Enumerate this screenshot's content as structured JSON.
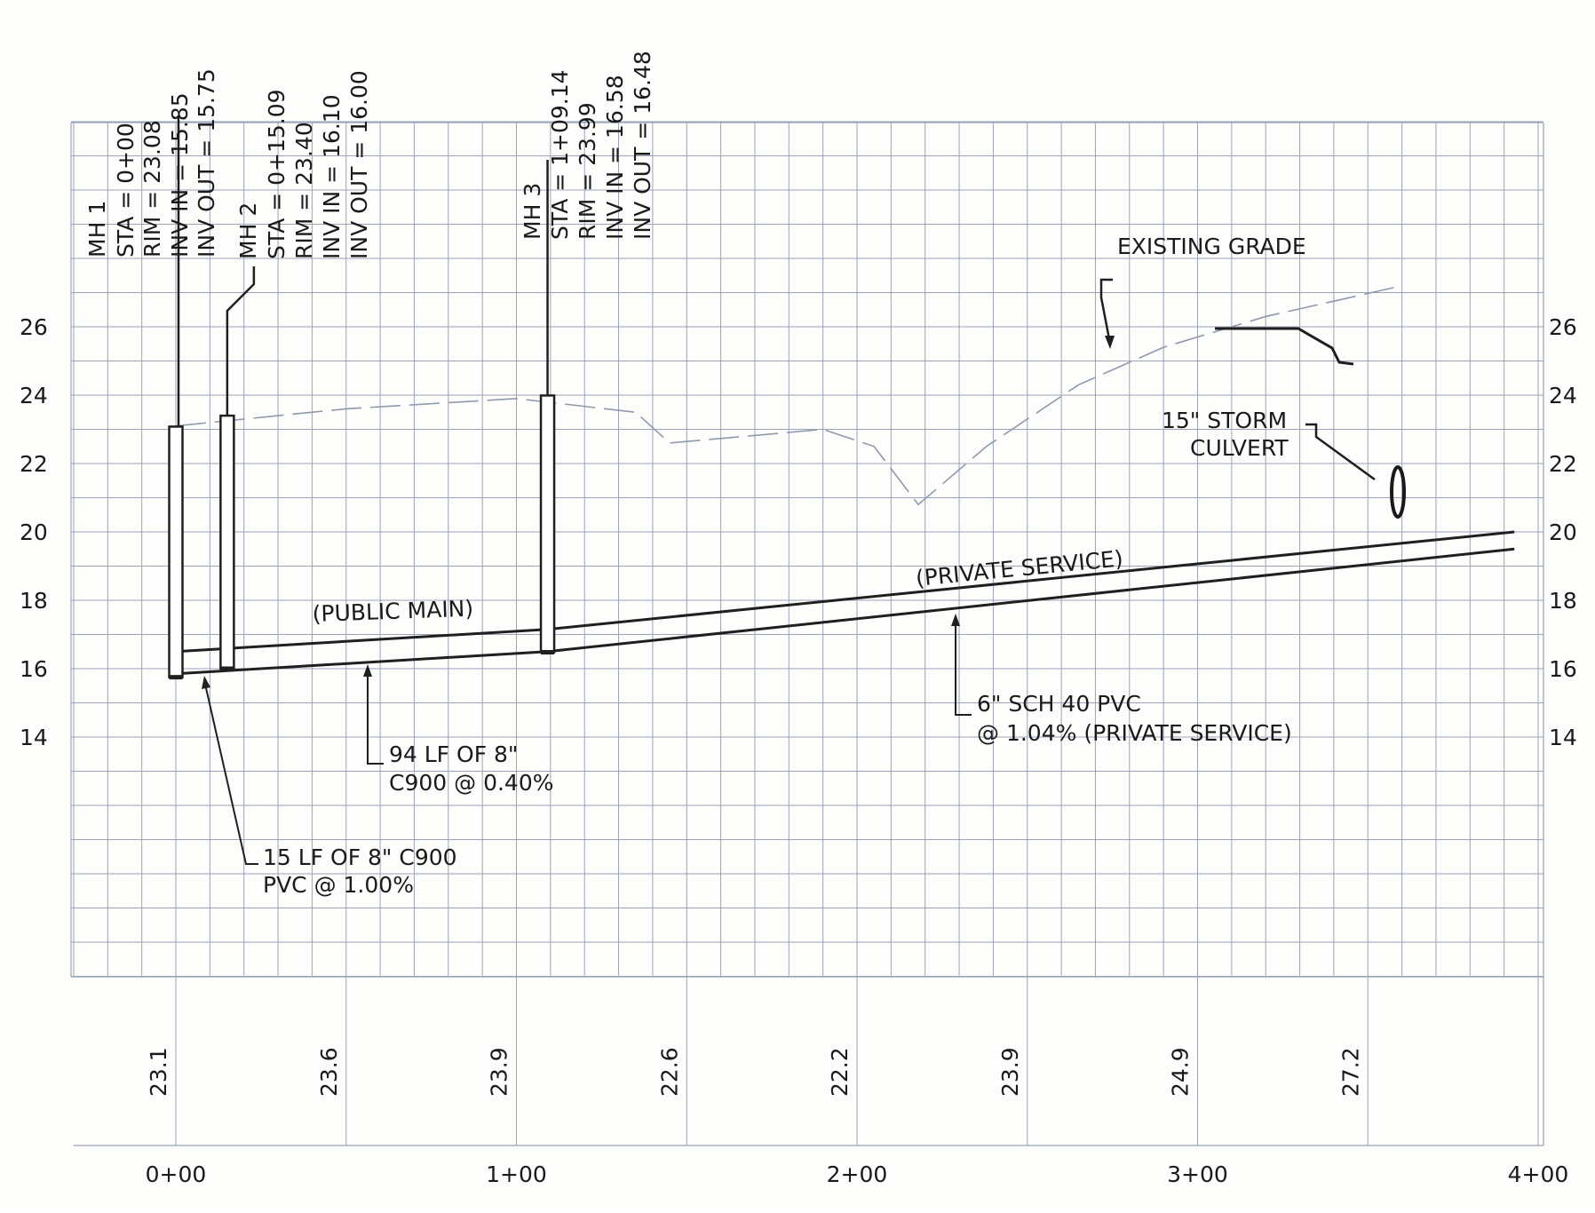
{
  "structures": [
    {
      "sta": 0.0,
      "rim": 23.08,
      "inv_low": 15.75,
      "lines": [
        "MH 1",
        "STA = 0+00",
        "RIM = 23.08",
        "INV IN = 15.85",
        "INV OUT = 15.75"
      ]
    },
    {
      "sta": 15.09,
      "rim": 23.4,
      "inv_low": 16.0,
      "lines": [
        "MH 2",
        "STA = 0+15.09",
        "RIM = 23.40",
        "INV IN = 16.10",
        "INV OUT = 16.00"
      ]
    },
    {
      "sta": 109.14,
      "rim": 23.99,
      "inv_low": 16.48,
      "lines": [
        "MH 3",
        "STA = 1+09.14",
        "RIM = 23.99",
        "INV IN = 16.58",
        "INV OUT = 16.48"
      ]
    }
  ],
  "elevation_labels": [
    "26",
    "24",
    "22",
    "20",
    "18",
    "16",
    "14"
  ],
  "elevation_values": [
    26,
    24,
    22,
    20,
    18,
    16,
    14
  ],
  "station_labels": [
    "0+00",
    "1+00",
    "2+00",
    "3+00",
    "4+00"
  ],
  "station_values": [
    0,
    100,
    200,
    300,
    400
  ],
  "grade_table": [
    {
      "sta": 0,
      "value": "23.1"
    },
    {
      "sta": 50,
      "value": "23.6"
    },
    {
      "sta": 100,
      "value": "23.9"
    },
    {
      "sta": 150,
      "value": "22.6"
    },
    {
      "sta": 200,
      "value": "22.2"
    },
    {
      "sta": 250,
      "value": "23.9"
    },
    {
      "sta": 300,
      "value": "24.9"
    },
    {
      "sta": 350,
      "value": "27.2"
    }
  ],
  "existing_grade_profile": [
    [
      0,
      23.1
    ],
    [
      50,
      23.6
    ],
    [
      100,
      23.9
    ],
    [
      135,
      23.5
    ],
    [
      145,
      22.6
    ],
    [
      190,
      23.0
    ],
    [
      205,
      22.5
    ],
    [
      218,
      20.8
    ],
    [
      238,
      22.5
    ],
    [
      265,
      24.3
    ],
    [
      290,
      25.4
    ],
    [
      320,
      26.3
    ],
    [
      360,
      27.2
    ]
  ],
  "pipe_crown": [
    [
      0,
      16.5
    ],
    [
      109.14,
      17.15
    ],
    [
      393,
      20.0
    ]
  ],
  "pipe_invert": [
    [
      0,
      15.85
    ],
    [
      109.14,
      16.5
    ],
    [
      393,
      19.5
    ]
  ],
  "callouts": {
    "existing_grade": "EXISTING GRADE",
    "storm_culvert_1": "15\" STORM",
    "storm_culvert_2": "CULVERT",
    "public_main": "(PUBLIC MAIN)",
    "private_service": "(PRIVATE SERVICE)",
    "pipe_94_1": "94 LF OF 8\"",
    "pipe_94_2": "C900 @ 0.40%",
    "pipe_15_1": "15 LF OF 8\" C900",
    "pipe_15_2": "PVC @ 1.00%",
    "service_1": "6\" SCH 40 PVC",
    "service_2": "@ 1.04% (PRIVATE SERVICE)"
  },
  "colors": {
    "grid": "#9aa3b8",
    "line": "#1f1f1f",
    "grade": "#8f98ac",
    "bg": "#fdfdfc"
  }
}
